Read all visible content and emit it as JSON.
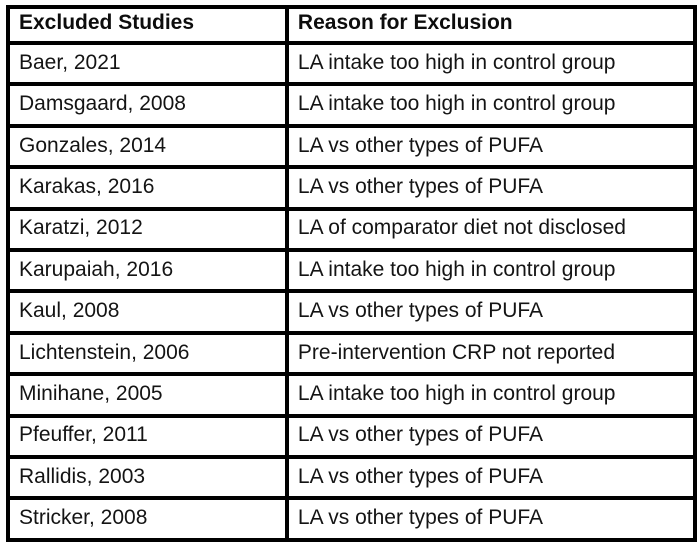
{
  "page": {
    "background_color": "#ffffff",
    "border_color": "#000000",
    "text_color": "#141414"
  },
  "table": {
    "columns": [
      "Excluded Studies",
      "Reason for Exclusion"
    ],
    "rows": [
      {
        "study": "Baer, 2021",
        "reason": "LA intake too high in control group"
      },
      {
        "study": "Damsgaard, 2008",
        "reason": "LA intake too high in control group"
      },
      {
        "study": "Gonzales, 2014",
        "reason": "LA vs other types of PUFA"
      },
      {
        "study": "Karakas, 2016",
        "reason": "LA vs other types of PUFA"
      },
      {
        "study": "Karatzi, 2012",
        "reason": "LA of comparator diet not disclosed"
      },
      {
        "study": "Karupaiah, 2016",
        "reason": "LA intake too high in control group"
      },
      {
        "study": "Kaul, 2008",
        "reason": "LA vs other types of PUFA"
      },
      {
        "study": "Lichtenstein, 2006",
        "reason": "Pre-intervention CRP not reported"
      },
      {
        "study": "Minihane, 2005",
        "reason": "LA intake too high in control group"
      },
      {
        "study": "Pfeuffer, 2011",
        "reason": "LA vs other types of PUFA"
      },
      {
        "study": "Rallidis, 2003",
        "reason": "LA vs other types of PUFA"
      },
      {
        "study": "Stricker, 2008",
        "reason": "LA vs other types of PUFA"
      }
    ]
  }
}
